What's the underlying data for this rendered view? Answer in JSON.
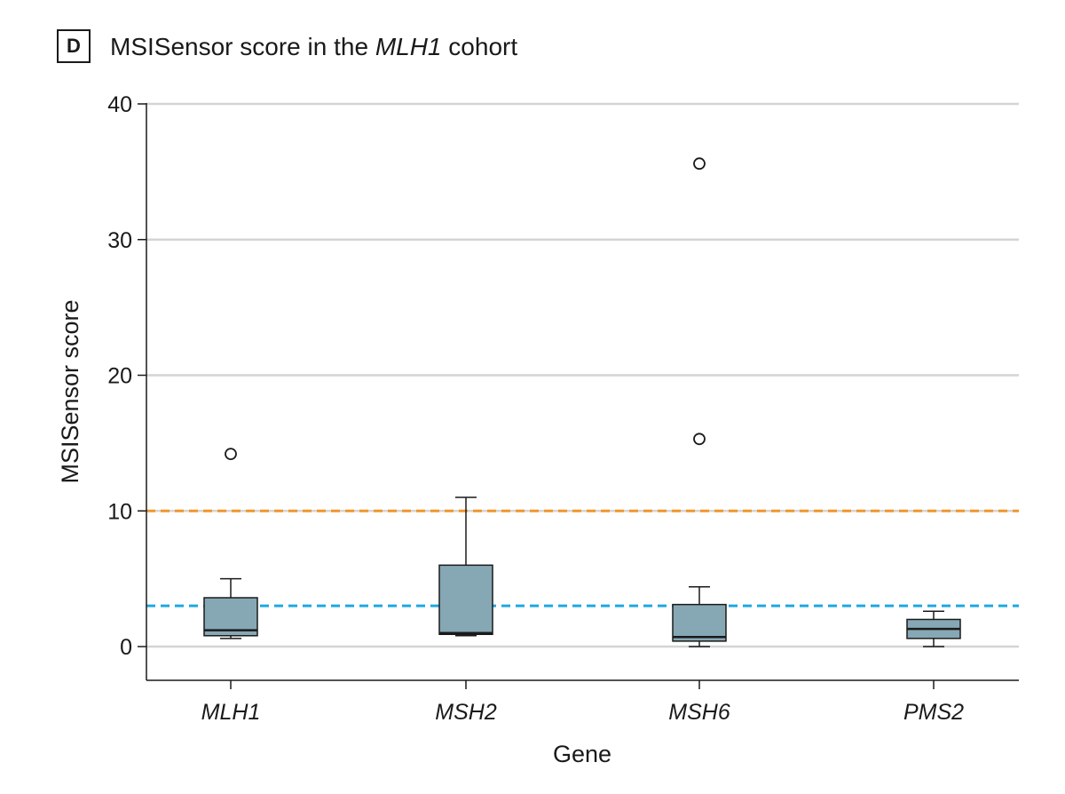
{
  "panel": {
    "letter": "D",
    "title_prefix": "MSISensor score in the ",
    "title_italic": "MLH1",
    "title_suffix": " cohort"
  },
  "chart_data": {
    "type": "box",
    "xlabel": "Gene",
    "ylabel": "MSISensor score",
    "ylim": [
      0,
      40
    ],
    "yticks": [
      0,
      10,
      20,
      30,
      40
    ],
    "grid": true,
    "categories": [
      "MLH1",
      "MSH2",
      "MSH6",
      "PMS2"
    ],
    "boxes": [
      {
        "category": "MLH1",
        "whisker_low": 0.6,
        "q1": 0.8,
        "median": 1.2,
        "q3": 3.6,
        "whisker_high": 5.0,
        "outliers": [
          14.2
        ]
      },
      {
        "category": "MSH2",
        "whisker_low": 0.8,
        "q1": 0.9,
        "median": 1.0,
        "q3": 6.0,
        "whisker_high": 11.0,
        "outliers": []
      },
      {
        "category": "MSH6",
        "whisker_low": 0.0,
        "q1": 0.4,
        "median": 0.7,
        "q3": 3.1,
        "whisker_high": 4.4,
        "outliers": [
          15.3,
          35.6
        ]
      },
      {
        "category": "PMS2",
        "whisker_low": 0.0,
        "q1": 0.6,
        "median": 1.3,
        "q3": 2.0,
        "whisker_high": 2.6,
        "outliers": []
      }
    ],
    "reference_lines": [
      {
        "value": 10,
        "color": "#f0962b",
        "style": "dashed"
      },
      {
        "value": 3,
        "color": "#1ea8e0",
        "style": "dashed"
      }
    ],
    "colors": {
      "box_fill": "#86a8b5",
      "box_stroke": "#1a1a1a",
      "grid": "#d4d4d4"
    }
  }
}
